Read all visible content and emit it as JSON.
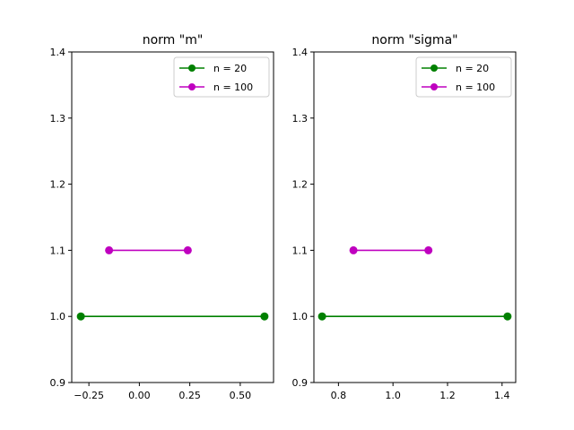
{
  "chart_data": [
    {
      "type": "line",
      "title": "norm \"m\"",
      "xlabel": "",
      "ylabel": "",
      "xlim": [
        -0.335,
        0.665
      ],
      "ylim": [
        0.9,
        1.4
      ],
      "xticks": [
        -0.25,
        0.0,
        0.25,
        0.5
      ],
      "xtick_labels": [
        "−0.25",
        "0.00",
        "0.25",
        "0.50"
      ],
      "yticks": [
        0.9,
        1.0,
        1.1,
        1.2,
        1.3,
        1.4
      ],
      "ytick_labels": [
        "0.9",
        "1.0",
        "1.1",
        "1.2",
        "1.3",
        "1.4"
      ],
      "grid": false,
      "legend_position": "top-right",
      "series": [
        {
          "name": "n = 20",
          "color": "#008000",
          "x": [
            -0.29,
            0.62
          ],
          "y": [
            1.0,
            1.0
          ]
        },
        {
          "name": "n = 100",
          "color": "#bf00bf",
          "x": [
            -0.15,
            0.24
          ],
          "y": [
            1.1,
            1.1
          ]
        }
      ]
    },
    {
      "type": "line",
      "title": "norm \"sigma\"",
      "xlabel": "",
      "ylabel": "",
      "xlim": [
        0.71,
        1.45
      ],
      "ylim": [
        0.9,
        1.4
      ],
      "xticks": [
        0.8,
        1.0,
        1.2,
        1.4
      ],
      "xtick_labels": [
        "0.8",
        "1.0",
        "1.2",
        "1.4"
      ],
      "yticks": [
        0.9,
        1.0,
        1.1,
        1.2,
        1.3,
        1.4
      ],
      "ytick_labels": [
        "0.9",
        "1.0",
        "1.1",
        "1.2",
        "1.3",
        "1.4"
      ],
      "grid": false,
      "legend_position": "top-right",
      "series": [
        {
          "name": "n = 20",
          "color": "#008000",
          "x": [
            0.74,
            1.42
          ],
          "y": [
            1.0,
            1.0
          ]
        },
        {
          "name": "n = 100",
          "color": "#bf00bf",
          "x": [
            0.855,
            1.13
          ],
          "y": [
            1.1,
            1.1
          ]
        }
      ]
    }
  ]
}
